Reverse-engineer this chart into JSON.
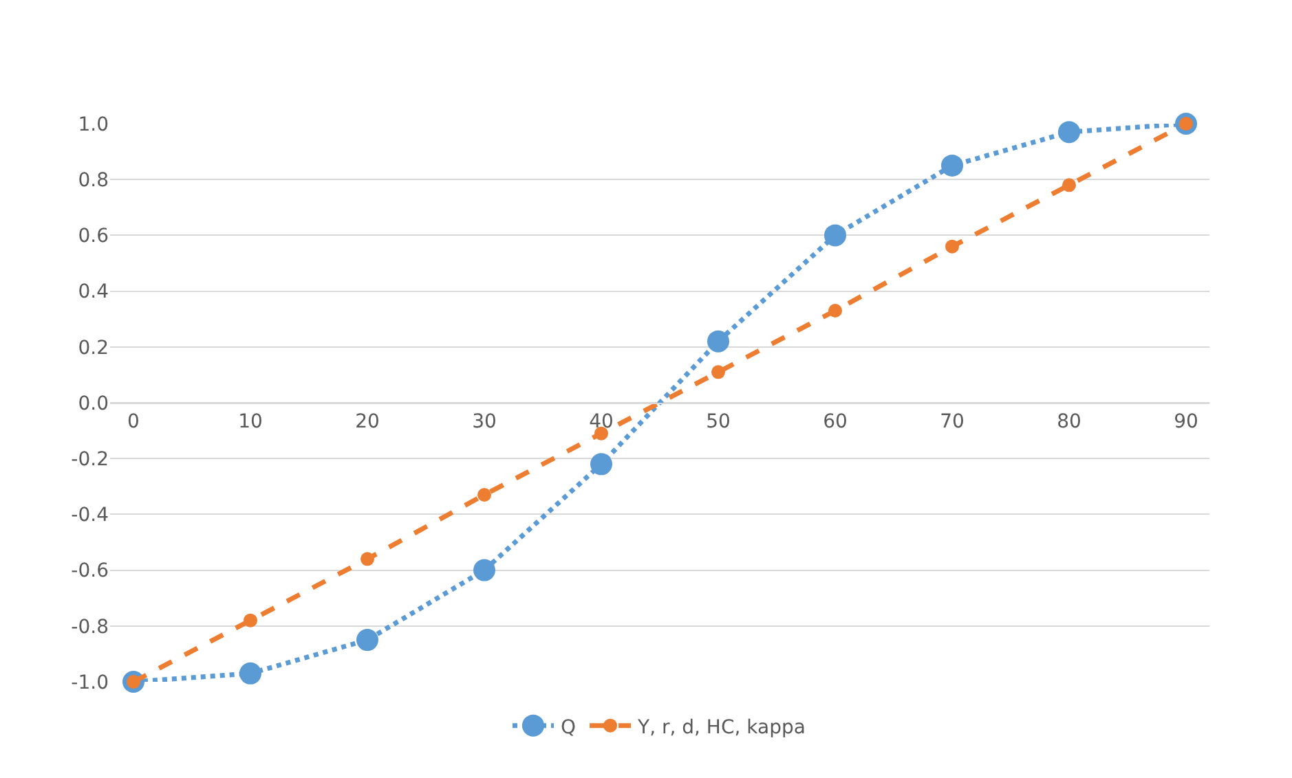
{
  "chart_data": {
    "type": "line",
    "categories": [
      "0",
      "10",
      "20",
      "30",
      "40",
      "50",
      "60",
      "70",
      "80",
      "90"
    ],
    "series": [
      {
        "name": "Q",
        "color": "#5b9bd5",
        "line_style": "dotted",
        "values": [
          -1.0,
          -0.97,
          -0.85,
          -0.6,
          -0.22,
          0.22,
          0.6,
          0.85,
          0.97,
          1.0
        ]
      },
      {
        "name": "Y, r, d, HC, kappa",
        "color": "#ed7d31",
        "line_style": "dashed",
        "values": [
          -1.0,
          -0.78,
          -0.56,
          -0.33,
          -0.11,
          0.11,
          0.33,
          0.56,
          0.78,
          1.0
        ]
      }
    ],
    "ylim": [
      -1.0,
      1.0
    ],
    "yticks": [
      {
        "value": -1.0,
        "label": "-1.0"
      },
      {
        "value": -0.8,
        "label": "-0.8"
      },
      {
        "value": -0.6,
        "label": "-0.6"
      },
      {
        "value": -0.4,
        "label": "-0.4"
      },
      {
        "value": -0.2,
        "label": "-0.2"
      },
      {
        "value": 0.0,
        "label": "0.0"
      },
      {
        "value": 0.2,
        "label": "0.2"
      },
      {
        "value": 0.4,
        "label": "0.4"
      },
      {
        "value": 0.6,
        "label": "0.6"
      },
      {
        "value": 0.8,
        "label": "0.8"
      },
      {
        "value": 1.0,
        "label": "1.0"
      }
    ],
    "grid": "y",
    "legend": "bottom",
    "marker": "circle"
  }
}
